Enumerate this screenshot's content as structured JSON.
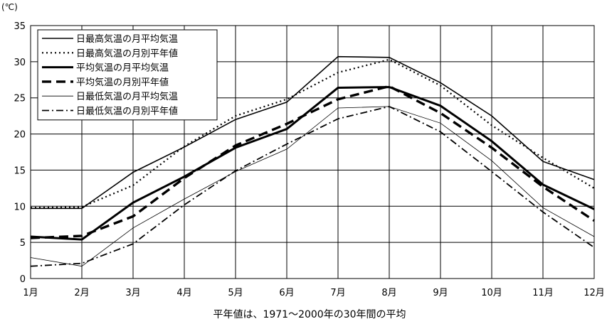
{
  "chart_data": {
    "type": "line",
    "unit_label": "(℃)",
    "note": "平年値は、1971～2000年の30年間の平均",
    "categories": [
      "1月",
      "2月",
      "3月",
      "4月",
      "5月",
      "6月",
      "7月",
      "8月",
      "9月",
      "10月",
      "11月",
      "12月"
    ],
    "ylim": [
      0,
      35
    ],
    "yticks": [
      0,
      5,
      10,
      15,
      20,
      25,
      30,
      35
    ],
    "grid": true,
    "legend_position": "top-left",
    "series": [
      {
        "name": "日最高気温の月平均気温",
        "style": "thin-solid",
        "color": "#000000",
        "values": [
          9.7,
          9.7,
          14.7,
          18.2,
          22.0,
          24.4,
          30.7,
          30.6,
          27.1,
          22.5,
          16.2,
          13.7
        ]
      },
      {
        "name": "日最高気温の月別平年値",
        "style": "dotted",
        "color": "#000000",
        "values": [
          9.8,
          9.9,
          12.9,
          18.3,
          22.5,
          24.8,
          28.5,
          30.3,
          26.7,
          21.2,
          16.7,
          12.5
        ]
      },
      {
        "name": "平均気温の月平均気温",
        "style": "thick-solid",
        "color": "#000000",
        "values": [
          5.8,
          5.4,
          10.5,
          14.1,
          18.1,
          20.7,
          26.4,
          26.5,
          23.9,
          19.0,
          13.0,
          9.6
        ]
      },
      {
        "name": "平均気温の月別平年値",
        "style": "thick-dashed",
        "color": "#000000",
        "values": [
          5.6,
          5.9,
          8.6,
          13.9,
          18.4,
          21.4,
          24.8,
          26.6,
          22.9,
          18.1,
          12.7,
          8.0
        ]
      },
      {
        "name": "日最低気温の月平均気温",
        "style": "hairline-solid",
        "color": "#000000",
        "values": [
          2.9,
          1.7,
          7.0,
          11.0,
          14.8,
          17.9,
          23.6,
          23.8,
          21.5,
          16.3,
          9.8,
          5.8
        ]
      },
      {
        "name": "日最低気温の月別平年値",
        "style": "dash-dot",
        "color": "#000000",
        "values": [
          1.7,
          2.1,
          4.8,
          10.2,
          14.9,
          18.6,
          22.1,
          23.8,
          20.3,
          14.8,
          9.2,
          4.3
        ]
      }
    ]
  }
}
